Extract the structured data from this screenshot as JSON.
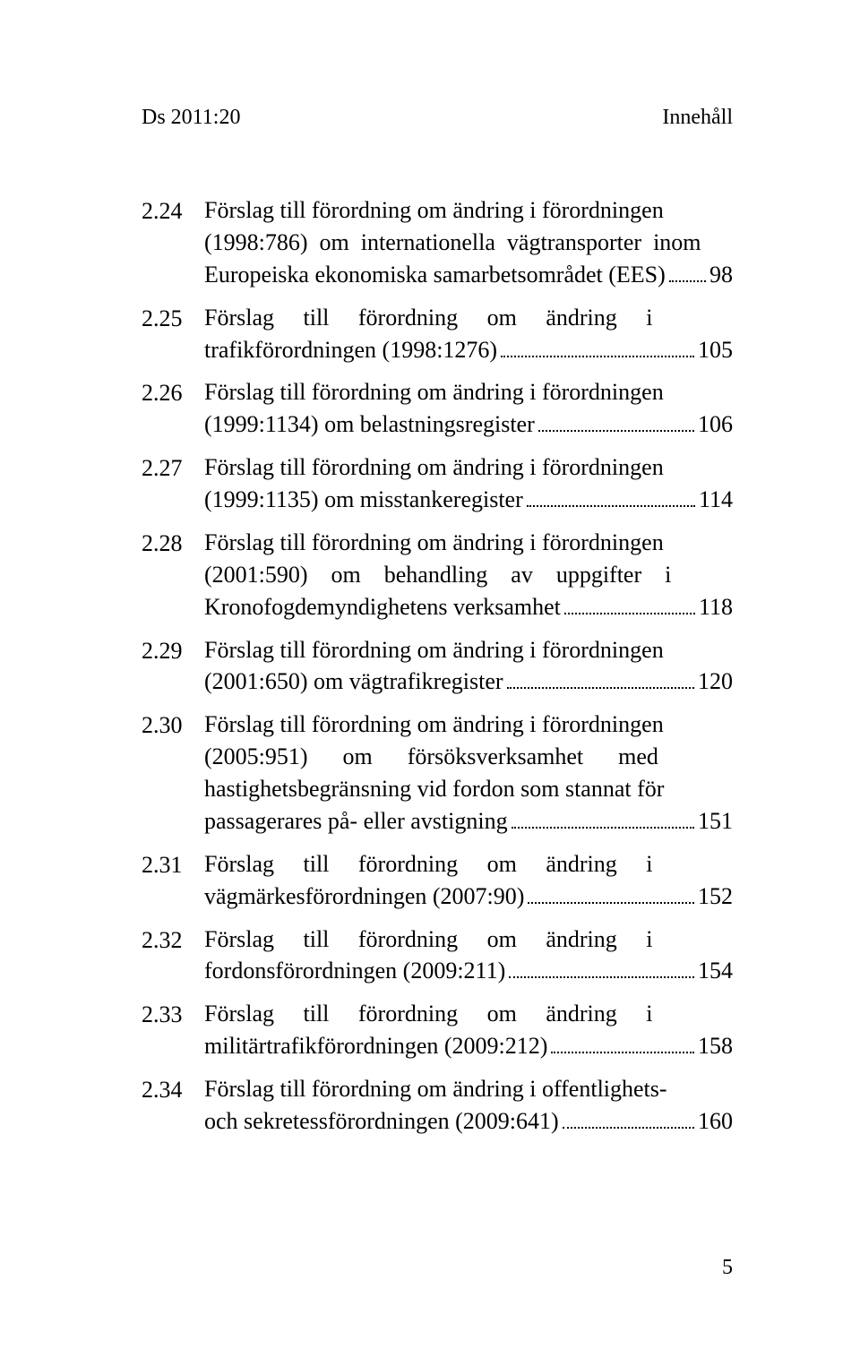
{
  "header": {
    "left": "Ds 2011:20",
    "right": "Innehåll"
  },
  "entries": [
    {
      "num": "2.24",
      "lines": [
        "Förslag till förordning om ändring i förordningen",
        "(1998:786)  om  internationella  vägtransporter  inom",
        "Europeiska ekonomiska samarbetsområdet (EES)"
      ],
      "page": "98"
    },
    {
      "num": "2.25",
      "lines": [
        "Förslag     till     förordning     om     ändring     i",
        "trafikförordningen (1998:1276)"
      ],
      "page": "105"
    },
    {
      "num": "2.26",
      "lines": [
        "Förslag till förordning om ändring i förordningen",
        "(1999:1134) om belastningsregister"
      ],
      "page": "106"
    },
    {
      "num": "2.27",
      "lines": [
        "Förslag till förordning om ändring i förordningen",
        "(1999:1135) om misstankeregister"
      ],
      "page": "114"
    },
    {
      "num": "2.28",
      "lines": [
        "Förslag till förordning om ändring i förordningen",
        "(2001:590)    om    behandling    av    uppgifter    i",
        "Kronofogdemyndighetens verksamhet"
      ],
      "page": "118"
    },
    {
      "num": "2.29",
      "lines": [
        "Förslag till förordning om ändring i förordningen",
        "(2001:650) om vägtrafikregister"
      ],
      "page": "120"
    },
    {
      "num": "2.30",
      "lines": [
        "Förslag till förordning om ändring i förordningen",
        "(2005:951)      om      försöksverksamhet      med",
        "hastighetsbegränsning vid fordon som stannat för",
        "passagerares på- eller avstigning"
      ],
      "page": "151"
    },
    {
      "num": "2.31",
      "lines": [
        "Förslag     till     förordning     om     ändring     i",
        "vägmärkesförordningen (2007:90)"
      ],
      "page": "152"
    },
    {
      "num": "2.32",
      "lines": [
        "Förslag     till     förordning     om     ändring     i",
        "fordonsförordningen (2009:211)"
      ],
      "page": "154"
    },
    {
      "num": "2.33",
      "lines": [
        "Förslag     till     förordning     om     ändring     i",
        "militärtrafikförordningen (2009:212)"
      ],
      "page": "158"
    },
    {
      "num": "2.34",
      "lines": [
        "Förslag till förordning om ändring i offentlighets-",
        "och sekretessförordningen (2009:641)"
      ],
      "page": "160"
    }
  ],
  "footerPage": "5",
  "colors": {
    "background": "#ffffff",
    "text": "#000000"
  },
  "fontSizes": {
    "header": 24,
    "body": 26,
    "footer": 24
  }
}
